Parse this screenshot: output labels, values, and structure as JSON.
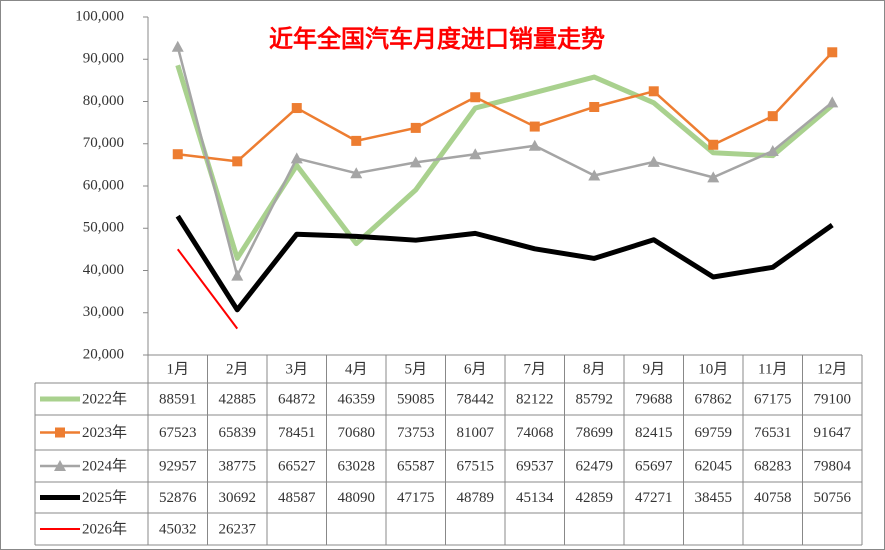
{
  "chart_data": {
    "type": "line",
    "title": "近年全国汽车月度进口销量走势",
    "categories": [
      "1月",
      "2月",
      "3月",
      "4月",
      "5月",
      "6月",
      "7月",
      "8月",
      "9月",
      "10月",
      "11月",
      "12月"
    ],
    "ylim": [
      20000,
      100000
    ],
    "yticks": [
      {
        "value": 20000,
        "label": "20,000"
      },
      {
        "value": 30000,
        "label": "30,000"
      },
      {
        "value": 40000,
        "label": "40,000"
      },
      {
        "value": 50000,
        "label": "50,000"
      },
      {
        "value": 60000,
        "label": "60,000"
      },
      {
        "value": 70000,
        "label": "70,000"
      },
      {
        "value": 80000,
        "label": "80,000"
      },
      {
        "value": 90000,
        "label": "90,000"
      },
      {
        "value": 100000,
        "label": "100,000"
      }
    ],
    "series": [
      {
        "name": "2022年",
        "color": "#a9d18e",
        "values": [
          88591,
          42885,
          64872,
          46359,
          59085,
          78442,
          82122,
          85792,
          79688,
          67862,
          67175,
          79100
        ]
      },
      {
        "name": "2023年",
        "color": "#ed7d31",
        "values": [
          67523,
          65839,
          78451,
          70680,
          73753,
          81007,
          74068,
          78699,
          82415,
          69759,
          76531,
          91647
        ]
      },
      {
        "name": "2024年",
        "color": "#a5a5a5",
        "values": [
          92957,
          38775,
          66527,
          63028,
          65587,
          67515,
          69537,
          62479,
          65697,
          62045,
          68283,
          79804
        ]
      },
      {
        "name": "2025年",
        "color": "#000000",
        "values": [
          52876,
          30692,
          48587,
          48090,
          47175,
          48789,
          45134,
          42859,
          47271,
          38455,
          40758,
          50756
        ]
      },
      {
        "name": "2026年",
        "color": "#ff0000",
        "values": [
          45032,
          26237,
          null,
          null,
          null,
          null,
          null,
          null,
          null,
          null,
          null,
          null
        ]
      }
    ]
  }
}
